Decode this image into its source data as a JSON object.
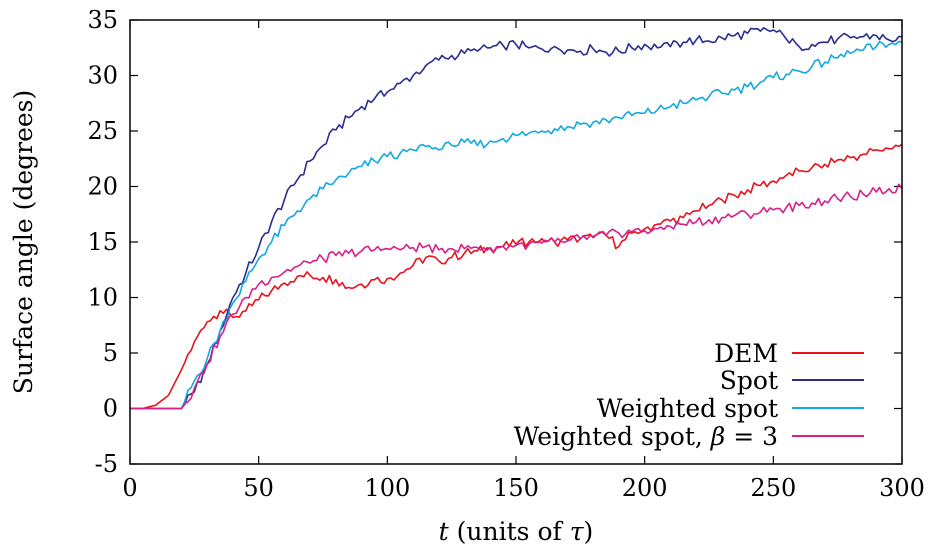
{
  "chart_data": {
    "type": "line",
    "title": "",
    "xlabel": "t (units of τ)",
    "xlabel_parts": {
      "var": "t",
      "rest": " (units of ",
      "sym": "τ",
      "close": ")"
    },
    "ylabel": "Surface angle (degrees)",
    "xlim": [
      0,
      300
    ],
    "ylim": [
      -5,
      35
    ],
    "xticks": [
      0,
      50,
      100,
      150,
      200,
      250,
      300
    ],
    "yticks": [
      -5,
      0,
      5,
      10,
      15,
      20,
      25,
      30,
      35
    ],
    "grid": false,
    "legend_position": "bottom-right",
    "series": [
      {
        "name": "DEM",
        "color": "#e8121c",
        "x": [
          0,
          5,
          10,
          15,
          20,
          25,
          30,
          35,
          40,
          45,
          50,
          55,
          60,
          65,
          70,
          75,
          80,
          85,
          90,
          95,
          100,
          105,
          110,
          115,
          120,
          125,
          130,
          135,
          140,
          145,
          150,
          155,
          160,
          165,
          170,
          175,
          180,
          185,
          190,
          195,
          200,
          205,
          210,
          215,
          220,
          225,
          230,
          235,
          240,
          245,
          250,
          255,
          260,
          265,
          270,
          275,
          280,
          285,
          290,
          295,
          300
        ],
        "values": [
          0,
          0,
          0.3,
          1.2,
          3.5,
          6.0,
          7.8,
          8.8,
          8.2,
          8.8,
          9.8,
          10.6,
          11.3,
          11.9,
          12.0,
          11.8,
          11.6,
          10.9,
          11.2,
          11.6,
          11.7,
          12.2,
          12.9,
          13.6,
          13.3,
          13.6,
          14.0,
          14.2,
          14.4,
          14.6,
          14.8,
          15.0,
          15.3,
          15.0,
          15.2,
          15.3,
          15.4,
          15.6,
          14.6,
          15.8,
          16.2,
          16.6,
          16.9,
          17.2,
          17.8,
          18.3,
          18.8,
          19.2,
          19.7,
          20.1,
          20.5,
          21.0,
          21.4,
          21.7,
          22.0,
          22.4,
          22.6,
          22.9,
          23.3,
          23.4,
          23.8
        ]
      },
      {
        "name": "Spot",
        "color": "#2b2d8e",
        "x": [
          0,
          5,
          10,
          15,
          20,
          25,
          30,
          35,
          40,
          45,
          50,
          55,
          60,
          65,
          70,
          75,
          80,
          85,
          90,
          95,
          100,
          105,
          110,
          115,
          120,
          125,
          130,
          135,
          140,
          145,
          150,
          155,
          160,
          165,
          170,
          175,
          180,
          185,
          190,
          195,
          200,
          205,
          210,
          215,
          220,
          225,
          230,
          235,
          240,
          245,
          250,
          255,
          260,
          265,
          270,
          275,
          280,
          285,
          290,
          295,
          300
        ],
        "values": [
          0,
          0,
          0,
          0,
          0,
          1.5,
          4.0,
          7.0,
          10.0,
          12.2,
          14.5,
          16.8,
          18.8,
          20.6,
          22.3,
          23.7,
          25.1,
          26.2,
          27.2,
          27.9,
          28.5,
          29.3,
          30.0,
          30.9,
          31.4,
          31.8,
          32.0,
          32.2,
          32.5,
          32.7,
          32.8,
          32.5,
          32.4,
          32.6,
          32.3,
          32.2,
          32.4,
          32.1,
          32.2,
          32.5,
          32.8,
          32.5,
          32.6,
          33.0,
          33.2,
          33.1,
          33.4,
          33.6,
          33.8,
          34.0,
          34.1,
          33.3,
          32.6,
          32.8,
          33.0,
          33.3,
          33.4,
          33.5,
          33.6,
          33.2,
          33.5
        ]
      },
      {
        "name": "Weighted spot",
        "color": "#12a8e0",
        "x": [
          0,
          5,
          10,
          15,
          20,
          25,
          30,
          35,
          40,
          45,
          50,
          55,
          60,
          65,
          70,
          75,
          80,
          85,
          90,
          95,
          100,
          105,
          110,
          115,
          120,
          125,
          130,
          135,
          140,
          145,
          150,
          155,
          160,
          165,
          170,
          175,
          180,
          185,
          190,
          195,
          200,
          205,
          210,
          215,
          220,
          225,
          230,
          235,
          240,
          245,
          250,
          255,
          260,
          265,
          270,
          275,
          280,
          285,
          290,
          295,
          300
        ],
        "values": [
          0,
          0,
          0,
          0,
          0,
          2.5,
          4.5,
          7.0,
          9.5,
          11.5,
          13.5,
          15.0,
          16.5,
          17.8,
          18.9,
          19.8,
          20.6,
          21.2,
          21.8,
          22.3,
          22.7,
          23.0,
          23.3,
          23.6,
          23.3,
          23.7,
          24.0,
          23.7,
          24.1,
          24.3,
          24.6,
          24.8,
          25.0,
          25.2,
          25.4,
          25.6,
          25.8,
          26.0,
          26.2,
          26.4,
          26.6,
          26.9,
          27.2,
          27.5,
          27.8,
          28.1,
          28.4,
          28.7,
          29.0,
          29.4,
          29.8,
          30.1,
          30.4,
          30.8,
          31.2,
          31.6,
          32.0,
          32.3,
          32.6,
          32.8,
          33.0
        ]
      },
      {
        "name": "Weighted spot, β = 3",
        "name_parts": {
          "text": "Weighted spot, ",
          "sym": "β",
          "eq": " = 3"
        },
        "color": "#d5208d",
        "x": [
          0,
          5,
          10,
          15,
          20,
          25,
          30,
          35,
          40,
          45,
          50,
          55,
          60,
          65,
          70,
          75,
          80,
          85,
          90,
          95,
          100,
          105,
          110,
          115,
          120,
          125,
          130,
          135,
          140,
          145,
          150,
          155,
          160,
          165,
          170,
          175,
          180,
          185,
          190,
          195,
          200,
          205,
          210,
          215,
          220,
          225,
          230,
          235,
          240,
          245,
          250,
          255,
          260,
          265,
          270,
          275,
          280,
          285,
          290,
          295,
          300
        ],
        "values": [
          0,
          0,
          0,
          0,
          0,
          1.8,
          4.0,
          6.5,
          8.5,
          10.0,
          11.2,
          11.8,
          12.3,
          12.8,
          13.1,
          13.5,
          13.8,
          14.0,
          14.2,
          14.3,
          14.4,
          14.3,
          14.5,
          14.6,
          14.3,
          14.4,
          14.4,
          14.5,
          14.5,
          14.6,
          14.7,
          14.8,
          14.9,
          15.0,
          15.1,
          15.3,
          15.5,
          15.6,
          15.8,
          15.9,
          16.0,
          16.2,
          16.4,
          16.6,
          16.8,
          17.0,
          17.2,
          17.4,
          17.5,
          17.7,
          17.9,
          18.1,
          18.3,
          18.5,
          18.7,
          18.9,
          19.1,
          19.3,
          19.5,
          19.8,
          19.8
        ]
      }
    ]
  }
}
